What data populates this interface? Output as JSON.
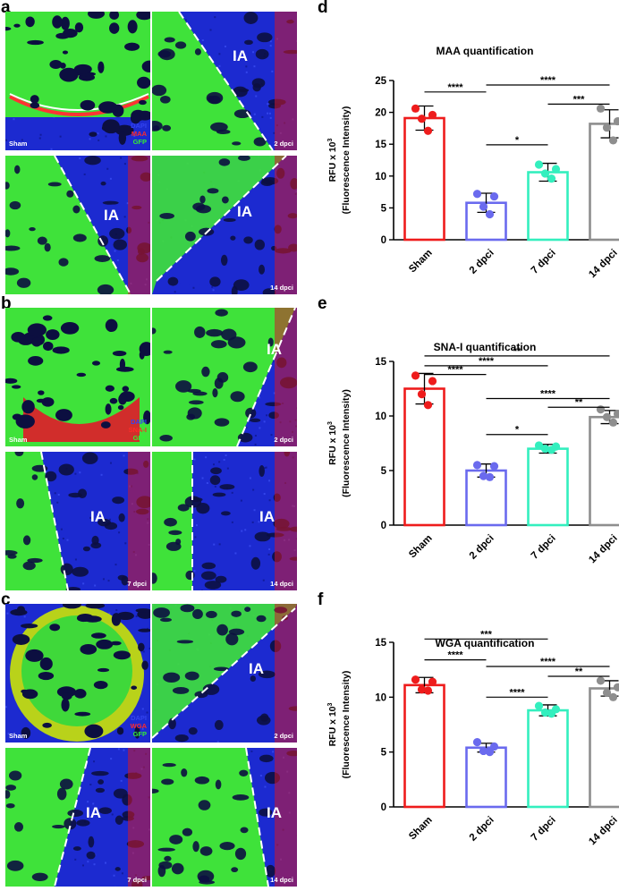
{
  "panels": {
    "a": "a",
    "b": "b",
    "c": "c",
    "d": "d",
    "e": "e",
    "f": "f"
  },
  "micrographs": {
    "a": {
      "legend": [
        {
          "text": "DAPI",
          "color": "#3344ee"
        },
        {
          "text": "MAA",
          "color": "#ff2a2a"
        },
        {
          "text": "GFP",
          "color": "#33ee33"
        }
      ],
      "tiles": [
        {
          "label": "Sham",
          "ia": ""
        },
        {
          "label": "2 dpci",
          "ia": "IA"
        },
        {
          "label": "",
          "ia": "IA"
        },
        {
          "label": "14 dpci",
          "ia": "IA"
        }
      ]
    },
    "b": {
      "legend": [
        {
          "text": "DAPI",
          "color": "#3344ee"
        },
        {
          "text": "SNA-I",
          "color": "#ff2a2a"
        },
        {
          "text": "GFP",
          "color": "#33ee33"
        }
      ],
      "tiles": [
        {
          "label": "Sham",
          "ia": ""
        },
        {
          "label": "2 dpci",
          "ia": "IA"
        },
        {
          "label": "7 dpci",
          "ia": "IA"
        },
        {
          "label": "14 dpci",
          "ia": "IA"
        }
      ]
    },
    "c": {
      "legend": [
        {
          "text": "DAPI",
          "color": "#3344ee"
        },
        {
          "text": "WGA",
          "color": "#ff2a2a"
        },
        {
          "text": "GFP",
          "color": "#33ee33"
        }
      ],
      "tiles": [
        {
          "label": "Sham",
          "ia": ""
        },
        {
          "label": "2 dpci",
          "ia": "IA"
        },
        {
          "label": "7 dpci",
          "ia": "IA"
        },
        {
          "label": "14 dpci",
          "ia": "IA"
        }
      ]
    }
  },
  "chart_data": [
    {
      "type": "bar",
      "title": "MAA quantification",
      "ylabel_line1": "RFU x 10",
      "ylabel_exp": "3",
      "ylabel_line2": "(Fluorescence Intensity)",
      "categories": [
        "Sham",
        "2 dpci",
        "7 dpci",
        "14 dpci"
      ],
      "colors": [
        "#ee1c1c",
        "#6a6aee",
        "#33efbe",
        "#8e8e8e"
      ],
      "values": [
        19.1,
        5.8,
        10.6,
        18.2
      ],
      "errors": [
        1.9,
        1.5,
        1.4,
        2.2
      ],
      "points": [
        [
          20.6,
          19.6,
          19.0,
          17.1
        ],
        [
          7.2,
          6.8,
          5.2,
          4.0
        ],
        [
          11.8,
          11.1,
          10.4,
          9.6
        ],
        [
          20.6,
          18.6,
          17.6,
          15.6
        ]
      ],
      "ylim": [
        0,
        25
      ],
      "yticks": [
        0,
        5,
        10,
        15,
        20,
        25
      ],
      "brackets": [
        {
          "from": 0,
          "to": 1,
          "value": 23.2,
          "label": "****"
        },
        {
          "from": 1,
          "to": 2,
          "value": 14.9,
          "label": "*"
        },
        {
          "from": 1,
          "to": 3,
          "value": 24.3,
          "label": "****"
        },
        {
          "from": 2,
          "to": 3,
          "value": 21.3,
          "label": "***"
        }
      ]
    },
    {
      "type": "bar",
      "title": "SNA-I quantification",
      "ylabel_line1": "RFU x 10",
      "ylabel_exp": "3",
      "ylabel_line2": "(Fluorescence Intensity)",
      "categories": [
        "Sham",
        "2 dpci",
        "7 dpci",
        "14 dpci"
      ],
      "colors": [
        "#ee1c1c",
        "#6a6aee",
        "#33efbe",
        "#8e8e8e"
      ],
      "values": [
        12.5,
        5.0,
        7.0,
        9.9
      ],
      "errors": [
        1.4,
        0.6,
        0.4,
        0.6
      ],
      "points": [
        [
          13.7,
          13.2,
          12.0,
          11.0
        ],
        [
          5.5,
          5.4,
          4.5,
          4.4
        ],
        [
          7.3,
          7.2,
          7.0,
          6.9
        ],
        [
          10.6,
          10.2,
          9.9,
          9.4
        ]
      ],
      "ylim": [
        0,
        15
      ],
      "yticks": [
        0,
        5,
        10,
        15
      ],
      "brackets": [
        {
          "from": 0,
          "to": 3,
          "value": 15.5,
          "label": "**"
        },
        {
          "from": 0,
          "to": 2,
          "value": 14.6,
          "label": "****"
        },
        {
          "from": 0,
          "to": 1,
          "value": 13.8,
          "label": "****"
        },
        {
          "from": 1,
          "to": 3,
          "value": 11.6,
          "label": "****"
        },
        {
          "from": 2,
          "to": 3,
          "value": 10.8,
          "label": "**"
        },
        {
          "from": 1,
          "to": 2,
          "value": 8.3,
          "label": "*"
        }
      ]
    },
    {
      "type": "bar",
      "title": "WGA quantification",
      "ylabel_line1": "RFU x 10",
      "ylabel_exp": "3",
      "ylabel_line2": "(Fluorescence Intensity)",
      "categories": [
        "Sham",
        "2 dpci",
        "7 dpci",
        "14 dpci"
      ],
      "colors": [
        "#ee1c1c",
        "#6a6aee",
        "#33efbe",
        "#8e8e8e"
      ],
      "values": [
        11.1,
        5.4,
        8.8,
        10.8
      ],
      "errors": [
        0.7,
        0.4,
        0.5,
        0.7
      ],
      "points": [
        [
          11.6,
          11.4,
          10.7,
          10.6
        ],
        [
          5.9,
          5.5,
          5.1,
          5.0
        ],
        [
          9.2,
          8.9,
          8.6,
          8.5
        ],
        [
          11.5,
          10.9,
          10.4,
          10.0
        ]
      ],
      "ylim": [
        0,
        15
      ],
      "yticks": [
        0,
        5,
        10,
        15
      ],
      "brackets": [
        {
          "from": 0,
          "to": 2,
          "value": 15.3,
          "label": "***"
        },
        {
          "from": 0,
          "to": 1,
          "value": 13.4,
          "label": "****"
        },
        {
          "from": 1,
          "to": 3,
          "value": 12.8,
          "label": "****"
        },
        {
          "from": 2,
          "to": 3,
          "value": 11.9,
          "label": "**"
        },
        {
          "from": 1,
          "to": 2,
          "value": 10.0,
          "label": "****"
        }
      ]
    }
  ]
}
